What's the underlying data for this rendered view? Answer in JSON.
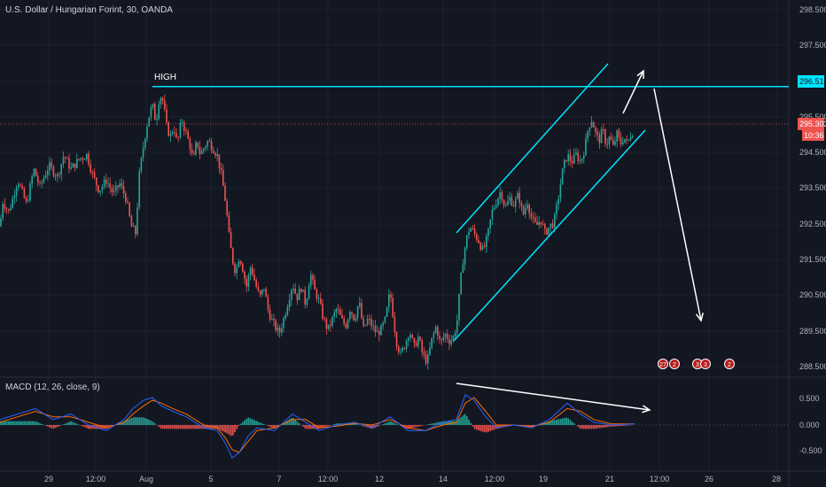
{
  "header": {
    "title": "U.S. Dollar / Hungarian Forint, 30, OANDA"
  },
  "macd_panel": {
    "title": "MACD (12, 26, close, 9)"
  },
  "colors": {
    "bg": "#131722",
    "grid": "#1e222d",
    "up": "#26a69a",
    "down": "#ef5350",
    "cyan": "#00e5ff",
    "white": "#ffffff",
    "macd": "#2962ff",
    "signal": "#ff6d00",
    "price_badge": "#ef5350"
  },
  "chart_data": [
    {
      "type": "candlestick",
      "title": "U.S. Dollar / Hungarian Forint, 30, OANDA",
      "ylim": [
        288.2,
        298.8
      ],
      "y_ticks": [
        "298.500",
        "297.500",
        "296.513",
        "295.500",
        "295.303",
        "294.500",
        "293.500",
        "292.500",
        "291.500",
        "290.500",
        "289.500",
        "288.500"
      ],
      "x_ticks": [
        "29",
        "12:00",
        "Aug",
        "5",
        "7",
        "12:00",
        "12",
        "14",
        "12:00",
        "19",
        "21",
        "12:00",
        "26",
        "28"
      ],
      "price_path": [
        [
          0,
          292.6
        ],
        [
          3,
          293.3
        ],
        [
          10,
          293.0
        ],
        [
          20,
          293.9
        ],
        [
          30,
          293.2
        ],
        [
          38,
          294.2
        ],
        [
          45,
          293.7
        ],
        [
          55,
          294.3
        ],
        [
          65,
          294.0
        ],
        [
          72,
          294.6
        ],
        [
          80,
          294.2
        ],
        [
          90,
          294.5
        ],
        [
          98,
          294.6
        ],
        [
          105,
          294.0
        ],
        [
          112,
          293.6
        ],
        [
          120,
          293.9
        ],
        [
          128,
          293.5
        ],
        [
          135,
          293.8
        ],
        [
          142,
          293.4
        ],
        [
          148,
          292.6
        ],
        [
          153,
          292.4
        ],
        [
          157,
          294.0
        ],
        [
          162,
          294.9
        ],
        [
          167,
          295.6
        ],
        [
          172,
          296.0
        ],
        [
          176,
          295.5
        ],
        [
          180,
          296.3
        ],
        [
          184,
          296.1
        ],
        [
          188,
          295.4
        ],
        [
          192,
          295.1
        ],
        [
          196,
          295.4
        ],
        [
          200,
          294.9
        ],
        [
          205,
          295.6
        ],
        [
          210,
          295.2
        ],
        [
          215,
          294.8
        ],
        [
          218,
          294.4
        ],
        [
          222,
          295.0
        ],
        [
          226,
          294.6
        ],
        [
          230,
          294.8
        ],
        [
          235,
          295.0
        ],
        [
          240,
          294.8
        ],
        [
          245,
          294.6
        ],
        [
          250,
          294.0
        ],
        [
          255,
          293.2
        ],
        [
          258,
          292.4
        ],
        [
          262,
          291.7
        ],
        [
          266,
          291.3
        ],
        [
          270,
          291.8
        ],
        [
          274,
          291.4
        ],
        [
          278,
          290.9
        ],
        [
          283,
          291.5
        ],
        [
          288,
          291.0
        ],
        [
          293,
          290.6
        ],
        [
          298,
          290.9
        ],
        [
          302,
          290.3
        ],
        [
          306,
          290.0
        ],
        [
          310,
          289.8
        ],
        [
          315,
          289.6
        ],
        [
          320,
          290.0
        ],
        [
          325,
          290.5
        ],
        [
          330,
          291.0
        ],
        [
          335,
          290.6
        ],
        [
          340,
          290.9
        ],
        [
          345,
          290.4
        ],
        [
          350,
          291.3
        ],
        [
          355,
          290.8
        ],
        [
          360,
          290.5
        ],
        [
          365,
          290.0
        ],
        [
          370,
          289.7
        ],
        [
          375,
          290.0
        ],
        [
          380,
          290.3
        ],
        [
          385,
          290.0
        ],
        [
          390,
          289.8
        ],
        [
          395,
          290.3
        ],
        [
          400,
          290.0
        ],
        [
          405,
          290.5
        ],
        [
          410,
          289.7
        ],
        [
          415,
          290.0
        ],
        [
          420,
          289.8
        ],
        [
          425,
          289.6
        ],
        [
          430,
          289.7
        ],
        [
          435,
          290.0
        ],
        [
          440,
          290.8
        ],
        [
          443,
          290.2
        ],
        [
          447,
          289.4
        ],
        [
          452,
          289.0
        ],
        [
          457,
          289.3
        ],
        [
          462,
          289.7
        ],
        [
          467,
          289.2
        ],
        [
          472,
          289.5
        ],
        [
          477,
          289.0
        ],
        [
          482,
          288.8
        ],
        [
          487,
          289.4
        ],
        [
          492,
          289.8
        ],
        [
          497,
          289.3
        ],
        [
          502,
          289.6
        ],
        [
          507,
          289.4
        ],
        [
          512,
          289.5
        ],
        [
          516,
          290.0
        ],
        [
          519,
          290.9
        ],
        [
          522,
          291.6
        ],
        [
          526,
          292.2
        ],
        [
          530,
          292.6
        ],
        [
          535,
          292.4
        ],
        [
          540,
          292.2
        ],
        [
          545,
          291.9
        ],
        [
          550,
          292.3
        ],
        [
          555,
          293.0
        ],
        [
          560,
          293.3
        ],
        [
          565,
          293.6
        ],
        [
          570,
          293.1
        ],
        [
          575,
          293.4
        ],
        [
          580,
          293.2
        ],
        [
          585,
          293.5
        ],
        [
          590,
          292.9
        ],
        [
          595,
          293.3
        ],
        [
          600,
          292.8
        ],
        [
          605,
          292.6
        ],
        [
          610,
          292.8
        ],
        [
          615,
          292.4
        ],
        [
          620,
          292.6
        ],
        [
          625,
          292.7
        ],
        [
          630,
          293.4
        ],
        [
          635,
          294.2
        ],
        [
          640,
          294.6
        ],
        [
          645,
          294.4
        ],
        [
          650,
          294.6
        ],
        [
          655,
          294.4
        ],
        [
          660,
          294.8
        ],
        [
          664,
          295.4
        ],
        [
          668,
          295.6
        ],
        [
          672,
          295.2
        ],
        [
          676,
          295.0
        ],
        [
          680,
          295.3
        ],
        [
          684,
          294.9
        ],
        [
          688,
          295.1
        ],
        [
          692,
          294.8
        ],
        [
          696,
          295.2
        ],
        [
          700,
          294.9
        ],
        [
          704,
          295.1
        ],
        [
          708,
          294.9
        ],
        [
          712,
          295.2
        ],
        [
          716,
          295.3
        ]
      ],
      "last_price": 295.303,
      "countdown": "10:36"
    },
    {
      "type": "macd",
      "title": "MACD (12, 26, close, 9)",
      "ylim": [
        -0.9,
        0.7
      ],
      "y_ticks": [
        "0.500",
        "0.000",
        "-0.500"
      ],
      "macd_path": [
        [
          0,
          0.1
        ],
        [
          20,
          0.2
        ],
        [
          40,
          0.3
        ],
        [
          60,
          0.1
        ],
        [
          80,
          0.2
        ],
        [
          100,
          0.0
        ],
        [
          120,
          -0.1
        ],
        [
          140,
          0.1
        ],
        [
          150,
          0.3
        ],
        [
          162,
          0.45
        ],
        [
          172,
          0.5
        ],
        [
          182,
          0.35
        ],
        [
          195,
          0.25
        ],
        [
          210,
          0.15
        ],
        [
          230,
          -0.05
        ],
        [
          245,
          -0.1
        ],
        [
          255,
          -0.35
        ],
        [
          262,
          -0.6
        ],
        [
          270,
          -0.5
        ],
        [
          280,
          -0.2
        ],
        [
          290,
          -0.05
        ],
        [
          310,
          -0.1
        ],
        [
          330,
          0.2
        ],
        [
          345,
          0.05
        ],
        [
          360,
          -0.1
        ],
        [
          380,
          0.0
        ],
        [
          400,
          0.05
        ],
        [
          420,
          -0.05
        ],
        [
          440,
          0.15
        ],
        [
          460,
          -0.1
        ],
        [
          480,
          -0.1
        ],
        [
          500,
          0.05
        ],
        [
          515,
          0.1
        ],
        [
          525,
          0.55
        ],
        [
          535,
          0.45
        ],
        [
          548,
          0.15
        ],
        [
          560,
          -0.05
        ],
        [
          580,
          0.0
        ],
        [
          600,
          -0.05
        ],
        [
          620,
          0.1
        ],
        [
          640,
          0.4
        ],
        [
          655,
          0.2
        ],
        [
          670,
          0.05
        ],
        [
          690,
          0.0
        ],
        [
          716,
          0.02
        ]
      ],
      "signal_path": [
        [
          0,
          0.05
        ],
        [
          20,
          0.15
        ],
        [
          40,
          0.25
        ],
        [
          60,
          0.15
        ],
        [
          80,
          0.15
        ],
        [
          100,
          0.05
        ],
        [
          120,
          -0.05
        ],
        [
          140,
          0.05
        ],
        [
          150,
          0.2
        ],
        [
          162,
          0.35
        ],
        [
          172,
          0.45
        ],
        [
          182,
          0.4
        ],
        [
          195,
          0.3
        ],
        [
          210,
          0.2
        ],
        [
          230,
          0.0
        ],
        [
          245,
          -0.05
        ],
        [
          255,
          -0.25
        ],
        [
          262,
          -0.45
        ],
        [
          270,
          -0.5
        ],
        [
          280,
          -0.3
        ],
        [
          290,
          -0.1
        ],
        [
          310,
          -0.05
        ],
        [
          330,
          0.1
        ],
        [
          345,
          0.1
        ],
        [
          360,
          -0.05
        ],
        [
          380,
          -0.02
        ],
        [
          400,
          0.03
        ],
        [
          420,
          0.0
        ],
        [
          440,
          0.1
        ],
        [
          460,
          -0.05
        ],
        [
          480,
          -0.1
        ],
        [
          500,
          0.0
        ],
        [
          515,
          0.05
        ],
        [
          525,
          0.4
        ],
        [
          535,
          0.5
        ],
        [
          548,
          0.25
        ],
        [
          560,
          0.0
        ],
        [
          580,
          0.0
        ],
        [
          600,
          -0.03
        ],
        [
          620,
          0.05
        ],
        [
          640,
          0.3
        ],
        [
          655,
          0.25
        ],
        [
          670,
          0.1
        ],
        [
          690,
          0.02
        ],
        [
          716,
          0.02
        ]
      ]
    }
  ],
  "annotations": {
    "high_label": "HIGH",
    "high_price": 296.513,
    "events": [
      "27",
      "2",
      "3",
      "3",
      "2"
    ]
  }
}
